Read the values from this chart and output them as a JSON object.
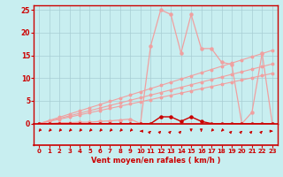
{
  "bg_color": "#c8eef0",
  "grid_color": "#a8cdd4",
  "axis_color": "#cc0000",
  "line_light": "#f0a0a0",
  "line_dark": "#cc0000",
  "xlabel": "Vent moyen/en rafales ( km/h )",
  "xlim": [
    -0.5,
    23.5
  ],
  "ylim": [
    0,
    26
  ],
  "x_ticks": [
    0,
    1,
    2,
    3,
    4,
    5,
    6,
    7,
    8,
    9,
    10,
    11,
    12,
    13,
    14,
    15,
    16,
    17,
    18,
    19,
    20,
    21,
    22,
    23
  ],
  "y_ticks": [
    0,
    5,
    10,
    15,
    20,
    25
  ],
  "hours": [
    0,
    1,
    2,
    3,
    4,
    5,
    6,
    7,
    8,
    9,
    10,
    11,
    12,
    13,
    14,
    15,
    16,
    17,
    18,
    19,
    20,
    21,
    22,
    23
  ],
  "gust": [
    0,
    0,
    0.2,
    0.2,
    0.3,
    0.3,
    0.5,
    0.6,
    0.8,
    1.0,
    0,
    17,
    25,
    24,
    15.5,
    24,
    16.5,
    16.5,
    13.5,
    13,
    0,
    2.5,
    15.5,
    0
  ],
  "ref1": [
    0,
    0.48,
    0.96,
    1.44,
    1.92,
    2.4,
    2.88,
    3.36,
    3.84,
    4.32,
    4.8,
    5.28,
    5.76,
    6.24,
    6.72,
    7.2,
    7.68,
    8.16,
    8.64,
    9.12,
    9.6,
    10.08,
    10.56,
    11.04
  ],
  "ref2": [
    0,
    0.57,
    1.14,
    1.71,
    2.28,
    2.85,
    3.42,
    3.99,
    4.56,
    5.13,
    5.7,
    6.27,
    6.84,
    7.41,
    7.98,
    8.55,
    9.12,
    9.69,
    10.26,
    10.83,
    11.4,
    11.97,
    12.54,
    13.11
  ],
  "ref3": [
    0,
    0.7,
    1.4,
    2.1,
    2.8,
    3.5,
    4.2,
    4.9,
    5.6,
    6.3,
    7.0,
    7.7,
    8.4,
    9.1,
    9.8,
    10.5,
    11.2,
    11.9,
    12.6,
    13.3,
    14.0,
    14.7,
    15.4,
    16.1
  ],
  "mean": [
    0,
    0,
    0,
    0,
    0,
    0,
    0,
    0,
    0,
    0,
    0,
    0,
    1.5,
    1.5,
    0.5,
    1.5,
    0.5,
    0,
    0,
    0,
    0,
    0,
    0,
    0
  ],
  "arrow_angles_deg": [
    225,
    225,
    225,
    225,
    225,
    225,
    225,
    225,
    225,
    225,
    270,
    45,
    45,
    45,
    45,
    180,
    180,
    225,
    225,
    45,
    45,
    45,
    45,
    90
  ]
}
